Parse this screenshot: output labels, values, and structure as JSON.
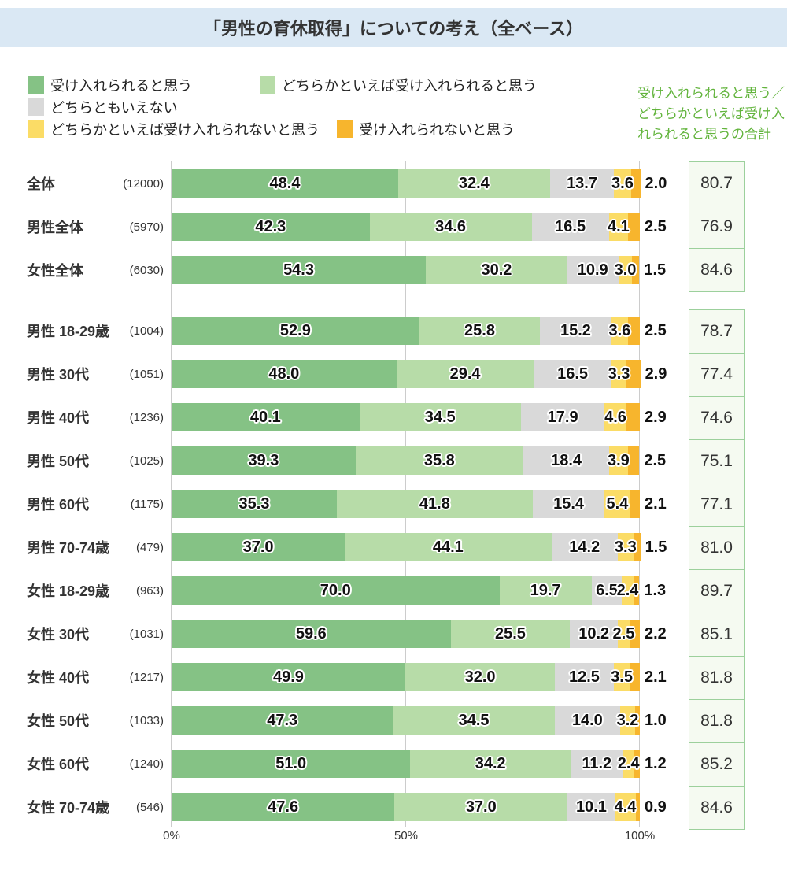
{
  "title": "「男性の育休取得」についての考え（全ベース）",
  "note": "受け入れられると思う／\nどちらかといえば受け入\nれられると思うの合計",
  "legend": [
    {
      "label": "受け入れられると思う",
      "color": "#85C285"
    },
    {
      "label": "どちらかといえば受け入れられると思う",
      "color": "#B7DCA8"
    },
    {
      "label": "どちらともいえない",
      "color": "#D9D9D9"
    },
    {
      "label": "どちらかといえば受け入れられないと思う",
      "color": "#FBDC66"
    },
    {
      "label": "受け入れられないと思う",
      "color": "#F7B52D"
    }
  ],
  "colors": {
    "banner_bg": "#DAE8F4",
    "note_green": "#62B43C",
    "total_box_border": "#9CD09C",
    "total_box_bg": "#F5FAF1",
    "gridline": "#CCCCCC"
  },
  "chart_data": {
    "type": "bar",
    "stacked": true,
    "orientation": "horizontal",
    "title": "「男性の育休取得」についての考え（全ベース）",
    "series_names": [
      "受け入れられると思う",
      "どちらかといえば受け入れられると思う",
      "どちらともいえない",
      "どちらかといえば受け入れられないと思う",
      "受け入れられないと思う"
    ],
    "x_ticks": [
      "0%",
      "50%",
      "100%"
    ],
    "xlim": [
      0,
      100
    ],
    "legend_position": "top",
    "totals_column_label": "受け入れられると思う／どちらかといえば受け入れられると思うの合計",
    "rows": [
      {
        "label": "全体",
        "n": 12000,
        "values": [
          48.4,
          32.4,
          13.7,
          3.6,
          2.0
        ],
        "total": 80.7,
        "group": 1
      },
      {
        "label": "男性全体",
        "n": 5970,
        "values": [
          42.3,
          34.6,
          16.5,
          4.1,
          2.5
        ],
        "total": 76.9,
        "group": 1
      },
      {
        "label": "女性全体",
        "n": 6030,
        "values": [
          54.3,
          30.2,
          10.9,
          3.0,
          1.5
        ],
        "total": 84.6,
        "group": 1
      },
      {
        "label": "男性 18-29歳",
        "n": 1004,
        "values": [
          52.9,
          25.8,
          15.2,
          3.6,
          2.5
        ],
        "total": 78.7,
        "group": 2
      },
      {
        "label": "男性 30代",
        "n": 1051,
        "values": [
          48.0,
          29.4,
          16.5,
          3.3,
          2.9
        ],
        "total": 77.4,
        "group": 2
      },
      {
        "label": "男性 40代",
        "n": 1236,
        "values": [
          40.1,
          34.5,
          17.9,
          4.6,
          2.9
        ],
        "total": 74.6,
        "group": 2
      },
      {
        "label": "男性 50代",
        "n": 1025,
        "values": [
          39.3,
          35.8,
          18.4,
          3.9,
          2.5
        ],
        "total": 75.1,
        "group": 2
      },
      {
        "label": "男性 60代",
        "n": 1175,
        "values": [
          35.3,
          41.8,
          15.4,
          5.4,
          2.1
        ],
        "total": 77.1,
        "group": 2
      },
      {
        "label": "男性 70-74歳",
        "n": 479,
        "values": [
          37.0,
          44.1,
          14.2,
          3.3,
          1.5
        ],
        "total": 81.0,
        "group": 2
      },
      {
        "label": "女性 18-29歳",
        "n": 963,
        "values": [
          70.0,
          19.7,
          6.5,
          2.4,
          1.3
        ],
        "total": 89.7,
        "group": 2
      },
      {
        "label": "女性 30代",
        "n": 1031,
        "values": [
          59.6,
          25.5,
          10.2,
          2.5,
          2.2
        ],
        "total": 85.1,
        "group": 2
      },
      {
        "label": "女性 40代",
        "n": 1217,
        "values": [
          49.9,
          32.0,
          12.5,
          3.5,
          2.1
        ],
        "total": 81.8,
        "group": 2
      },
      {
        "label": "女性 50代",
        "n": 1033,
        "values": [
          47.3,
          34.5,
          14.0,
          3.2,
          1.0
        ],
        "total": 81.8,
        "group": 2
      },
      {
        "label": "女性 60代",
        "n": 1240,
        "values": [
          51.0,
          34.2,
          11.2,
          2.4,
          1.2
        ],
        "total": 85.2,
        "group": 2
      },
      {
        "label": "女性 70-74歳",
        "n": 546,
        "values": [
          47.6,
          37.0,
          10.1,
          4.4,
          0.9
        ],
        "total": 84.6,
        "group": 2
      }
    ]
  }
}
